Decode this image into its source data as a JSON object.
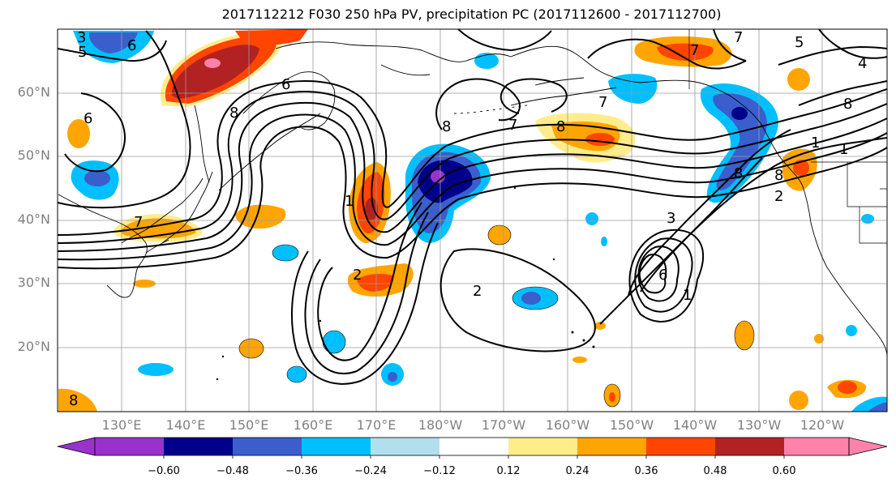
{
  "title": "2017112212 F030 250 hPa PV, precipitation PC (2017112600 - 2017112700)",
  "lat_labels": [
    "60°N",
    "50°N",
    "40°N",
    "30°N",
    "20°N"
  ],
  "lon_labels": [
    "130°E",
    "140°E",
    "150°E",
    "160°E",
    "170°E",
    "180°W",
    "170°W",
    "160°W",
    "150°W",
    "140°W",
    "130°W",
    "120°W"
  ],
  "colorbar": {
    "ticks": [
      "−0.60",
      "−0.48",
      "−0.36",
      "−0.24",
      "−0.12",
      "0.12",
      "0.24",
      "0.36",
      "0.48",
      "0.60"
    ],
    "colors": [
      "#9932CC",
      "#00008B",
      "#3A5FCD",
      "#00BFFF",
      "#B2DFEE",
      "#FFFFFF",
      "#FFEC8B",
      "#FFA500",
      "#FF4500",
      "#B22222",
      "#FF82AB"
    ]
  },
  "contour_labels": [
    "3",
    "6",
    "5",
    "8",
    "6",
    "7",
    "6",
    "8",
    "7",
    "1",
    "8",
    "7",
    "5",
    "4",
    "8",
    "7",
    "1",
    "2",
    "8",
    "2",
    "2",
    "1",
    "3",
    "6",
    "1",
    "7",
    "8",
    "8"
  ]
}
